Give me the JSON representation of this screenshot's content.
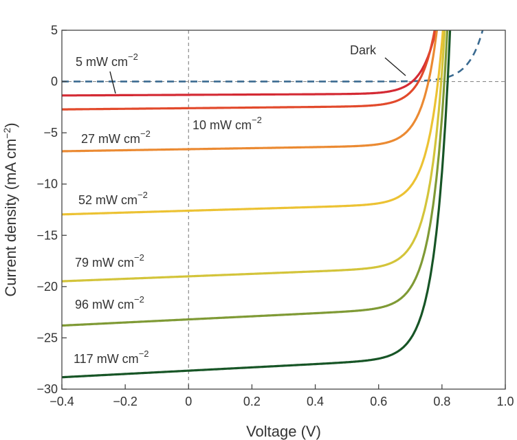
{
  "chart_data": {
    "type": "line",
    "title": "",
    "xlabel": "Voltage (V)",
    "ylabel": "Current density (mA cm",
    "ylabel_sup": "−2",
    "ylabel_close": ")",
    "xlim": [
      -0.4,
      1.0
    ],
    "ylim": [
      -30,
      5
    ],
    "x_ticks": [
      -0.4,
      -0.2,
      0,
      0.2,
      0.4,
      0.6,
      0.8,
      1.0
    ],
    "x_tick_labels": [
      "−0.4",
      "−0.2",
      "0",
      "0.2",
      "0.4",
      "0.6",
      "0.8",
      "1.0"
    ],
    "y_ticks": [
      5,
      0,
      -5,
      -10,
      -15,
      -20,
      -25,
      -30
    ],
    "y_tick_labels": [
      "5",
      "0",
      "−5",
      "−10",
      "−15",
      "−20",
      "−25",
      "−30"
    ],
    "reference_lines": {
      "x": 0,
      "y": 0,
      "style": "dashed"
    },
    "unit_suffix": " mW cm",
    "unit_exp": "−2",
    "series": [
      {
        "name": "Dark",
        "label": "Dark",
        "power": null,
        "jsc": 0,
        "voc": 0.68,
        "color": "#3a6a90",
        "dashed": true,
        "slope": 0.0
      },
      {
        "name": "5 mW cm−2",
        "label": "5",
        "power": 5,
        "jsc": -1.3,
        "voc": 0.71,
        "color": "#d42a34",
        "dashed": false,
        "slope": 0.15
      },
      {
        "name": "10 mW cm−2",
        "label": "10",
        "power": 10,
        "jsc": -2.6,
        "voc": 0.73,
        "color": "#e24a2c",
        "dashed": false,
        "slope": 0.3
      },
      {
        "name": "27 mW cm−2",
        "label": "27",
        "power": 27,
        "jsc": -6.6,
        "voc": 0.76,
        "color": "#eb8a32",
        "dashed": false,
        "slope": 0.5
      },
      {
        "name": "52 mW cm−2",
        "label": "52",
        "power": 52,
        "jsc": -12.6,
        "voc": 0.79,
        "color": "#ecc233",
        "dashed": false,
        "slope": 0.9
      },
      {
        "name": "79 mW cm−2",
        "label": "79",
        "power": 79,
        "jsc": -19.0,
        "voc": 0.8,
        "color": "#d3c43a",
        "dashed": false,
        "slope": 1.2
      },
      {
        "name": "96 mW cm−2",
        "label": "96",
        "power": 96,
        "jsc": -23.2,
        "voc": 0.81,
        "color": "#7f9a35",
        "dashed": false,
        "slope": 1.5
      },
      {
        "name": "117 mW cm−2",
        "label": "117",
        "power": 117,
        "jsc": -28.2,
        "voc": 0.82,
        "color": "#175526",
        "dashed": false,
        "slope": 1.6
      }
    ],
    "annotations": [
      {
        "series": "Dark",
        "text": "Dark"
      },
      {
        "series": "5 mW cm−2",
        "text": "5 mW cm",
        "exp": "−2"
      },
      {
        "series": "10 mW cm−2",
        "text": "10 mW cm",
        "exp": "−2"
      },
      {
        "series": "27 mW cm−2",
        "text": "27 mW cm",
        "exp": "−2"
      },
      {
        "series": "52 mW cm−2",
        "text": "52 mW cm",
        "exp": "−2"
      },
      {
        "series": "79 mW cm−2",
        "text": "79 mW cm",
        "exp": "−2"
      },
      {
        "series": "96 mW cm−2",
        "text": "96 mW cm",
        "exp": "−2"
      },
      {
        "series": "117 mW cm−2",
        "text": "117 mW cm",
        "exp": "−2"
      }
    ]
  }
}
